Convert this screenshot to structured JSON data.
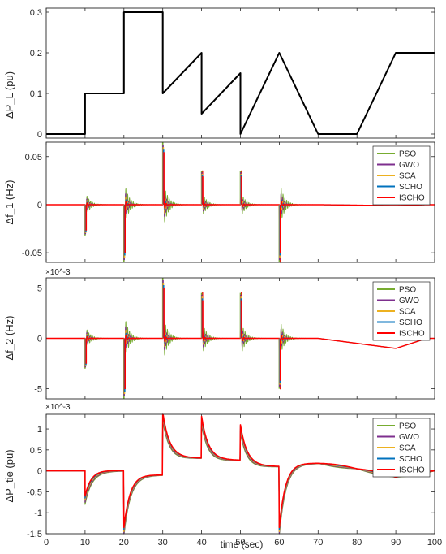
{
  "xlabel": "time (sec)",
  "chart_data": [
    {
      "type": "line",
      "id": "pl",
      "ylabel": "ΔP_L (pu)",
      "xlim": [
        0,
        100
      ],
      "ylim": [
        -0.01,
        0.31
      ],
      "xticks": [
        0,
        10,
        20,
        30,
        40,
        50,
        60,
        70,
        80,
        90,
        100
      ],
      "yticks": [
        0,
        0.1,
        0.2,
        0.3
      ],
      "ytick_labels": [
        "0",
        "0.1",
        "0.2",
        "0.3"
      ],
      "series": [
        {
          "color": "#000000",
          "x": [
            0,
            10,
            10,
            20,
            20,
            30,
            30,
            40,
            40,
            50,
            50,
            60,
            60,
            70,
            80,
            90,
            100
          ],
          "y": [
            0,
            0,
            0.1,
            0.1,
            0.3,
            0.3,
            0.1,
            0.2,
            0.05,
            0.15,
            0,
            0.2,
            0.2,
            0,
            0,
            0.2,
            0.2
          ]
        }
      ]
    },
    {
      "type": "line",
      "id": "f1",
      "ylabel": "Δf_1 (Hz)",
      "xlim": [
        0,
        100
      ],
      "ylim": [
        -0.06,
        0.065
      ],
      "xticks": [
        0,
        10,
        20,
        30,
        40,
        50,
        60,
        70,
        80,
        90,
        100
      ],
      "yticks": [
        -0.05,
        0,
        0.05
      ],
      "ytick_labels": [
        "-0.05",
        "0",
        "0.05"
      ],
      "legend": [
        "PSO",
        "GWO",
        "SCA",
        "SCHO",
        "ISCHO"
      ],
      "legend_position": "top-right",
      "events": [
        {
          "t": 10,
          "peak": -0.032
        },
        {
          "t": 20,
          "peak": -0.06
        },
        {
          "t": 30,
          "peak": 0.065
        },
        {
          "t": 40,
          "peak": 0.035
        },
        {
          "t": 50,
          "peak": 0.035
        },
        {
          "t": 60,
          "peak": -0.06
        }
      ],
      "tail": {
        "t0": 70,
        "dip": -0.001,
        "t_min": 90
      }
    },
    {
      "type": "line",
      "id": "f2",
      "ylabel": "Δf_2 (Hz)",
      "multiplier": "×10^-3",
      "xlim": [
        0,
        100
      ],
      "ylim": [
        -6,
        6
      ],
      "xticks": [
        0,
        10,
        20,
        30,
        40,
        50,
        60,
        70,
        80,
        90,
        100
      ],
      "yticks": [
        -5,
        0,
        5
      ],
      "ytick_labels": [
        "-5",
        "0",
        "5"
      ],
      "legend": [
        "PSO",
        "GWO",
        "SCA",
        "SCHO",
        "ISCHO"
      ],
      "legend_position": "top-right",
      "events": [
        {
          "t": 10,
          "peak": -3.0
        },
        {
          "t": 20,
          "peak": -6.0
        },
        {
          "t": 30,
          "peak": 6.0
        },
        {
          "t": 40,
          "peak": 4.5
        },
        {
          "t": 50,
          "peak": 4.5
        },
        {
          "t": 60,
          "peak": -5.0
        }
      ],
      "tail": {
        "t0": 70,
        "dip": -1.0,
        "t_min": 90
      }
    },
    {
      "type": "line",
      "id": "ptie",
      "ylabel": "ΔP_tie (pu)",
      "multiplier": "×10^-3",
      "xlim": [
        0,
        100
      ],
      "ylim": [
        -1.5,
        1.35
      ],
      "xticks": [
        0,
        10,
        20,
        30,
        40,
        50,
        60,
        70,
        80,
        90,
        100
      ],
      "xtick_labels": [
        "0",
        "10",
        "20",
        "30",
        "40",
        "50",
        "60",
        "70",
        "80",
        "90",
        "100"
      ],
      "yticks": [
        -1.5,
        -1,
        -0.5,
        0,
        0.5,
        1
      ],
      "ytick_labels": [
        "-1.5",
        "-1",
        "-0.5",
        "0",
        "0.5",
        "1"
      ],
      "legend": [
        "PSO",
        "GWO",
        "SCA",
        "SCHO",
        "ISCHO"
      ],
      "legend_position": "top-right",
      "segments": [
        {
          "t0": 0,
          "t1": 10,
          "start": 0,
          "end": 0
        },
        {
          "t0": 10,
          "t1": 20,
          "start": -0.7,
          "end": 0
        },
        {
          "t0": 20,
          "t1": 30,
          "start": -1.45,
          "end": -0.1
        },
        {
          "t0": 30,
          "t1": 40,
          "start": 1.3,
          "end": 0.3
        },
        {
          "t0": 40,
          "t1": 50,
          "start": 1.2,
          "end": 0.25
        },
        {
          "t0": 50,
          "t1": 60,
          "start": 1.0,
          "end": 0.1
        },
        {
          "t0": 60,
          "t1": 70,
          "start": -1.45,
          "end": 0.18
        },
        {
          "t0": 70,
          "t1": 80,
          "start": 0.18,
          "end": 0.05
        },
        {
          "t0": 80,
          "t1": 90,
          "start": 0.05,
          "end": -0.15
        },
        {
          "t0": 90,
          "t1": 100,
          "start": -0.15,
          "end": 0
        }
      ]
    }
  ],
  "series_styles": [
    {
      "name": "PSO",
      "color": "#77AC30"
    },
    {
      "name": "GWO",
      "color": "#7E2F8E"
    },
    {
      "name": "SCA",
      "color": "#EDB120"
    },
    {
      "name": "SCHO",
      "color": "#0072BD"
    },
    {
      "name": "ISCHO",
      "color": "#FF0000"
    }
  ]
}
